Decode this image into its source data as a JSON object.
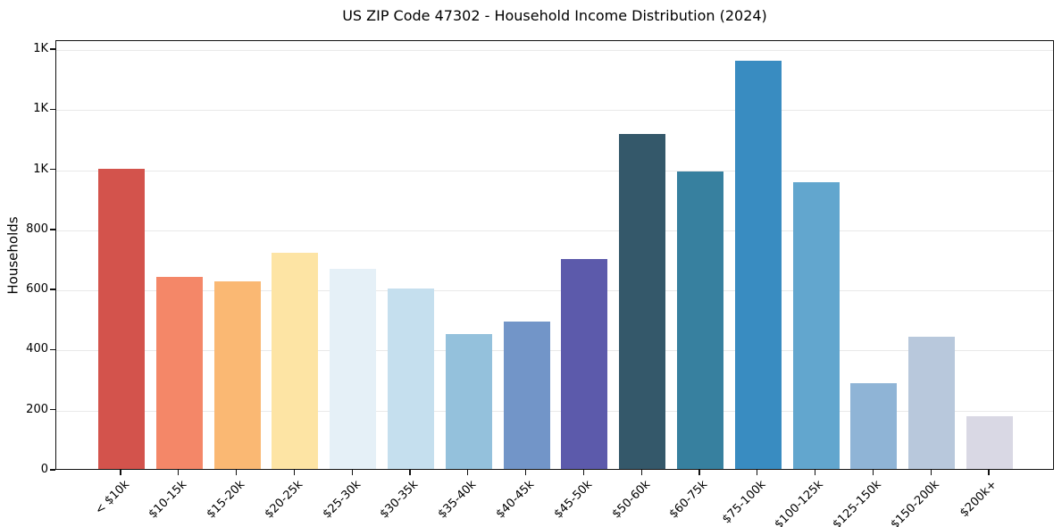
{
  "figure": {
    "title": "US ZIP Code 47302 - Household Income Distribution (2024)",
    "ylabel": "Households"
  },
  "chart_data": {
    "type": "bar",
    "title": "US ZIP Code 47302 - Household Income Distribution (2024)",
    "xlabel": "",
    "ylabel": "Households",
    "categories": [
      "< $10k",
      "$10-15k",
      "$15-20k",
      "$20-25k",
      "$25-30k",
      "$30-35k",
      "$35-40k",
      "$40-45k",
      "$45-50k",
      "$50-60k",
      "$60-75k",
      "$75-100k",
      "$100-125k",
      "$125-150k",
      "$150-200k",
      "$200k+"
    ],
    "values": [
      1000,
      640,
      625,
      720,
      665,
      600,
      450,
      490,
      700,
      1115,
      990,
      1360,
      955,
      285,
      440,
      175
    ],
    "bar_colors": [
      "#d3534c",
      "#f48768",
      "#fab873",
      "#fde4a4",
      "#e5f0f7",
      "#c5dfee",
      "#94c1dc",
      "#7295c8",
      "#5c5aab",
      "#34586a",
      "#37809f",
      "#398cc1",
      "#62a6ce",
      "#8fb4d6",
      "#b8c8dc",
      "#d9d8e4"
    ],
    "ylim": [
      0,
      1430
    ],
    "yticks": {
      "values": [
        0,
        200,
        400,
        600,
        800,
        1000,
        1200,
        1400
      ],
      "labels": [
        "0",
        "200",
        "400",
        "600",
        "800",
        "1K",
        "1K",
        "1K"
      ]
    },
    "grid": "horizontal",
    "legend": "none",
    "x_tick_rotation": 45,
    "spine_color": "#111111",
    "gridline_color": "#e9e9e9",
    "background_color": "#ffffff"
  }
}
